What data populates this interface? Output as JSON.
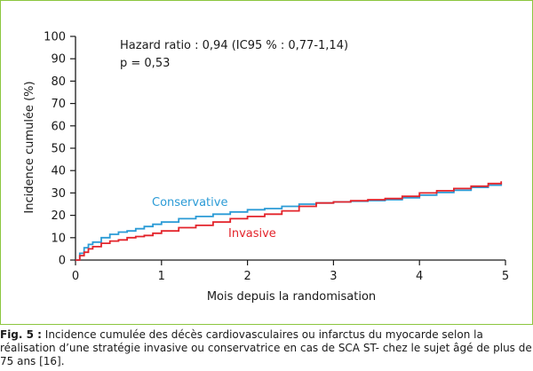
{
  "chart_data": {
    "type": "line",
    "xlabel": "Mois depuis la randomisation",
    "ylabel": "Incidence cumulée (%)",
    "xlim": [
      0,
      5
    ],
    "ylim": [
      0,
      100
    ],
    "xticks": [
      "0",
      "1",
      "2",
      "3",
      "4",
      "5"
    ],
    "yticks": [
      "0",
      "10",
      "20",
      "30",
      "40",
      "50",
      "60",
      "70",
      "80",
      "90",
      "100"
    ],
    "grid": false,
    "annotations": [
      "Hazard ratio : 0,94 (IC95 % : 0,77-1,14)",
      "p = 0,53"
    ],
    "series": [
      {
        "name": "Conservative",
        "color": "#2b9bd6",
        "x": [
          0,
          0.05,
          0.1,
          0.15,
          0.2,
          0.3,
          0.4,
          0.5,
          0.6,
          0.7,
          0.8,
          0.9,
          1.0,
          1.2,
          1.4,
          1.6,
          1.8,
          2.0,
          2.2,
          2.4,
          2.6,
          2.8,
          3.0,
          3.2,
          3.4,
          3.6,
          3.8,
          4.0,
          4.2,
          4.4,
          4.6,
          4.8,
          4.95
        ],
        "y": [
          0,
          3,
          5.5,
          7,
          8,
          10,
          11.5,
          12.5,
          13,
          14,
          15,
          16,
          17,
          18.5,
          19.5,
          20.5,
          21.5,
          22.5,
          23,
          24,
          25,
          25.5,
          26,
          26.3,
          26.6,
          27,
          27.8,
          29,
          30.2,
          31.2,
          32.5,
          33.5,
          34.5
        ]
      },
      {
        "name": "Invasive",
        "color": "#e3242b",
        "x": [
          0,
          0.05,
          0.1,
          0.15,
          0.2,
          0.3,
          0.4,
          0.5,
          0.6,
          0.7,
          0.8,
          0.9,
          1.0,
          1.2,
          1.4,
          1.6,
          1.8,
          2.0,
          2.2,
          2.4,
          2.6,
          2.8,
          3.0,
          3.2,
          3.4,
          3.6,
          3.8,
          4.0,
          4.2,
          4.4,
          4.6,
          4.8,
          4.95
        ],
        "y": [
          0,
          2,
          3.5,
          5,
          6,
          7.5,
          8.5,
          9,
          10,
          10.5,
          11,
          12,
          13,
          14.5,
          15.5,
          17,
          18.5,
          19.5,
          20.5,
          22,
          24,
          25.5,
          26,
          26.5,
          27,
          27.5,
          28.5,
          30,
          31,
          32,
          33,
          34.2,
          35.2
        ]
      }
    ]
  },
  "legend_labels": {
    "conservative": "Conservative",
    "invasive": "Invasive"
  },
  "caption": {
    "lead": "Fig. 5 :",
    "text": " Incidence cumulée des décès cardiovasculaires ou infarctus du myocarde selon la réalisation d’une stratégie invasive ou conservatrice en cas de SCA ST- chez le sujet âgé de plus de 75 ans [16]."
  }
}
